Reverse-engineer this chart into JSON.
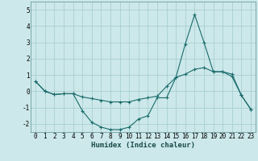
{
  "title": "",
  "xlabel": "Humidex (Indice chaleur)",
  "ylabel": "",
  "xlim": [
    -0.5,
    23.5
  ],
  "ylim": [
    -2.5,
    5.5
  ],
  "yticks": [
    -2,
    -1,
    0,
    1,
    2,
    3,
    4,
    5
  ],
  "xticks": [
    0,
    1,
    2,
    3,
    4,
    5,
    6,
    7,
    8,
    9,
    10,
    11,
    12,
    13,
    14,
    15,
    16,
    17,
    18,
    19,
    20,
    21,
    22,
    23
  ],
  "background_color": "#cce8ea",
  "grid_color": "#aacfcf",
  "line_color": "#1a6b6b",
  "line1_x": [
    0,
    1,
    2,
    3,
    4,
    5,
    6,
    7,
    8,
    9,
    10,
    11,
    12,
    13,
    14,
    15,
    16,
    17,
    18,
    19,
    20,
    21,
    22,
    23
  ],
  "line1_y": [
    0.6,
    0.0,
    -0.2,
    -0.15,
    -0.15,
    -1.2,
    -1.9,
    -2.2,
    -2.35,
    -2.35,
    -2.2,
    -1.7,
    -1.5,
    -0.4,
    -0.4,
    0.85,
    2.9,
    4.7,
    3.0,
    1.2,
    1.2,
    0.9,
    -0.25,
    -1.1
  ],
  "line2_x": [
    0,
    1,
    2,
    3,
    4,
    5,
    6,
    7,
    8,
    9,
    10,
    11,
    12,
    13,
    14,
    15,
    16,
    17,
    18,
    19,
    20,
    21,
    22,
    23
  ],
  "line2_y": [
    0.6,
    0.0,
    -0.2,
    -0.15,
    -0.15,
    -0.35,
    -0.45,
    -0.55,
    -0.65,
    -0.65,
    -0.65,
    -0.5,
    -0.4,
    -0.3,
    0.3,
    0.85,
    1.05,
    1.35,
    1.45,
    1.2,
    1.2,
    1.05,
    -0.25,
    -1.1
  ],
  "xlabel_fontsize": 6.5,
  "tick_fontsize": 5.5
}
